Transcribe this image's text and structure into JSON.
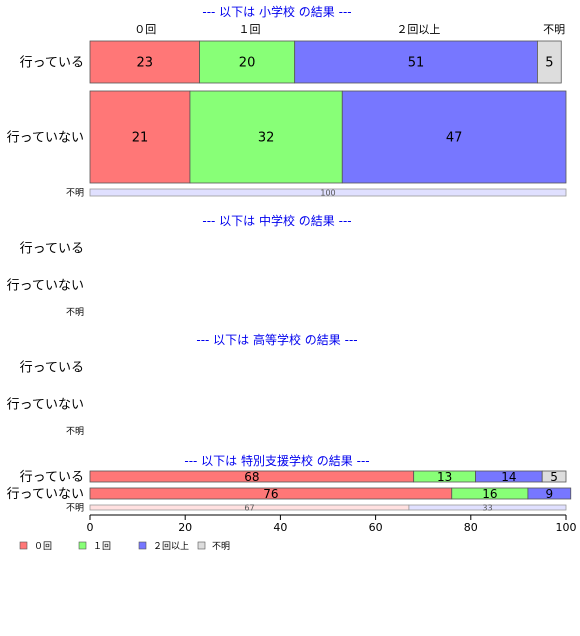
{
  "chart_data": {
    "type": "bar",
    "orientation": "horizontal",
    "stacked": "percent",
    "xlim": [
      0,
      100
    ],
    "x_ticks": [
      "0",
      "20",
      "40",
      "60",
      "80",
      "100"
    ],
    "category_names": [
      "０回",
      "１回",
      "２回以上",
      "不明"
    ],
    "legend_position": "bottom-left",
    "colors": {
      "c0": "#ff7777",
      "c1": "#88ff77",
      "c2": "#7777ff",
      "c3": "#dddddd"
    },
    "top_labels": [
      {
        "text": "０回",
        "x": 11.6
      },
      {
        "text": "１回",
        "x": 33.5
      },
      {
        "text": "２回以上",
        "x": 69.0
      },
      {
        "text": "不明",
        "x": 97.5
      }
    ],
    "groups": [
      {
        "title": "--- 以下は 小学校 の結果 ---",
        "rows": [
          {
            "label": "行っている",
            "values": [
              23,
              20,
              51,
              5
            ]
          },
          {
            "label": "行っていない",
            "values": [
              21,
              32,
              47
            ]
          },
          {
            "label": "不明",
            "values": [
              0,
              0,
              100
            ]
          }
        ]
      },
      {
        "title": "--- 以下は 中学校 の結果 ---",
        "rows": [
          {
            "label": "行っている",
            "values": []
          },
          {
            "label": "行っていない",
            "values": []
          },
          {
            "label": "不明",
            "values": []
          }
        ]
      },
      {
        "title": "--- 以下は 高等学校 の結果 ---",
        "rows": [
          {
            "label": "行っている",
            "values": []
          },
          {
            "label": "行っていない",
            "values": []
          },
          {
            "label": "不明",
            "values": []
          }
        ]
      },
      {
        "title": "--- 以下は 特別支援学校 の結果 ---",
        "rows": [
          {
            "label": "行っている",
            "values": [
              68,
              13,
              14,
              5
            ]
          },
          {
            "label": "行っていない",
            "values": [
              76,
              16,
              9
            ]
          },
          {
            "label": "不明",
            "values": [
              67,
              0,
              33
            ]
          }
        ]
      }
    ]
  }
}
